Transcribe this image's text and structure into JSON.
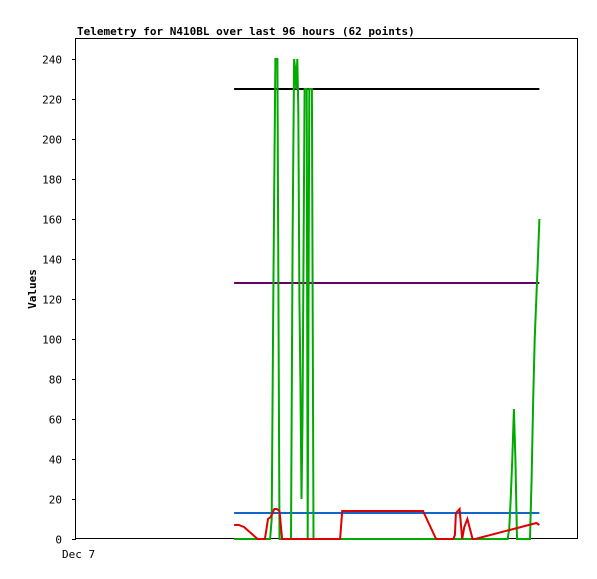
{
  "chart_data": {
    "type": "line",
    "title": "Telemetry for N410BL over last 96 hours (62 points)",
    "xlabel": "",
    "ylabel": "Values",
    "xlim": [
      0,
      96
    ],
    "ylim": [
      0,
      250
    ],
    "yticks": [
      0,
      20,
      40,
      60,
      80,
      100,
      120,
      140,
      160,
      180,
      200,
      220,
      240
    ],
    "xtick_labels": [
      {
        "x": 0,
        "label": "Dec 7"
      }
    ],
    "grid": false,
    "legend": "none",
    "series": [
      {
        "color": "#000000",
        "x": [
          30.3,
          88.8
        ],
        "y": [
          225,
          225
        ]
      },
      {
        "color": "#660066",
        "x": [
          30.3,
          88.8
        ],
        "y": [
          128,
          128
        ]
      },
      {
        "color": "#1166cc",
        "x": [
          30.3,
          88.8
        ],
        "y": [
          13,
          13
        ]
      },
      {
        "color": "#00aa00",
        "x": [
          30.3,
          37.2,
          37.5,
          37.8,
          38.0,
          38.2,
          38.4,
          38.6,
          39.0,
          41.2,
          41.5,
          41.8,
          42.0,
          42.2,
          42.4,
          42.6,
          42.8,
          43.0,
          43.2,
          43.4,
          43.6,
          43.8,
          44.0,
          44.2,
          44.4,
          44.7,
          45.0,
          45.2,
          45.5,
          45.8,
          46.0,
          82.7,
          83.0,
          83.3,
          83.6,
          83.9,
          84.2,
          84.5,
          84.8,
          85.1,
          87.0,
          87.3,
          87.6,
          87.9,
          88.2,
          88.5,
          88.8
        ],
        "y": [
          0,
          0,
          10,
          120,
          180,
          240,
          240,
          240,
          0,
          0,
          150,
          240,
          235,
          225,
          240,
          215,
          120,
          80,
          20,
          60,
          140,
          225,
          225,
          225,
          0,
          225,
          225,
          225,
          0,
          0,
          0,
          0,
          5,
          20,
          40,
          65,
          40,
          0,
          0,
          0,
          0,
          30,
          70,
          100,
          120,
          140,
          160
        ]
      },
      {
        "color": "#dd0000",
        "x": [
          30.3,
          31.2,
          32.2,
          34.8,
          36.2,
          36.8,
          37.3,
          38.0,
          38.5,
          39.0,
          39.5,
          41.5,
          42.0,
          45.7,
          50.6,
          51.0,
          66.5,
          69.0,
          71.0,
          71.5,
          72.0,
          72.3,
          72.6,
          72.8,
          73.5,
          74.0,
          74.4,
          75.0,
          75.5,
          76.0,
          76.5,
          88.2,
          88.8
        ],
        "y": [
          7,
          7,
          6,
          0,
          0,
          10,
          11,
          15,
          15,
          14,
          0,
          0,
          0,
          0,
          0,
          14,
          14,
          0,
          0,
          0,
          0,
          0,
          2,
          13,
          15,
          0,
          6,
          10,
          5,
          0,
          0,
          8,
          7
        ]
      }
    ]
  }
}
